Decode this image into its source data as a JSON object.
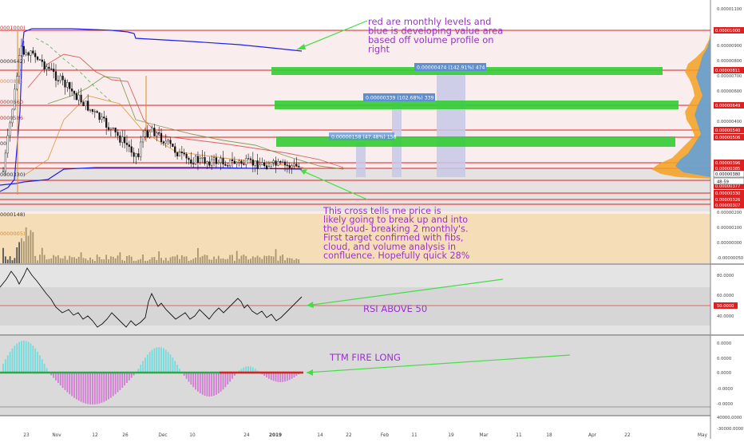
{
  "chart_data": {
    "type": "candlestick",
    "title": "",
    "annotations": {
      "monthly_note": "red are monthly levels and blue is developing value area based off volume profile on right",
      "cross_note": "This cross tells me price is likely going to break up and into the cloud- breaking 2 monthly's. First target confirmed with fibs, cloud, and volume analysis in confluence. Hopefully quick 28%",
      "rsi_note": "RSI ABOVE 50",
      "ttm_note": "TTM FIRE LONG"
    },
    "x_ticks": [
      "23",
      "Nov",
      "12",
      "26",
      "Dec",
      "10",
      "24",
      "2019",
      "14",
      "22",
      "Feb",
      "11",
      "19",
      "Mar",
      "11",
      "18",
      "Apr",
      "22",
      "May"
    ],
    "price_axis_ticks": [
      "0.00001100",
      "0.00001000",
      "0.00000900",
      "0.00000800",
      "0.00000700",
      "0.00000600",
      "0.00000500",
      "0.00000400",
      "0.00000300",
      "0.00000200",
      "0.00000100",
      "0.00000000",
      "-0.00000050"
    ],
    "price_level_tags": [
      "0.00001000",
      "0.00000811",
      "0.00000649",
      "0.00000540",
      "0.00000506",
      "0.00000396",
      "0.00000385",
      "0.00000380",
      "0.00000377",
      "0.00000330",
      "0.00000326",
      "0.00000307"
    ],
    "countdown_tag": "48:59",
    "left_edge_labels": [
      "0001000)",
      "0000642)",
      "0000811",
      "0000660",
      "0000586",
      "00",
      "0000330)",
      "0000148)",
      "0000005)"
    ],
    "targets": [
      {
        "label": "0.00000474 (142.91%) 474",
        "pct": 142.91
      },
      {
        "label": "0.00000339 (102.68%) 339",
        "pct": 102.68
      },
      {
        "label": "0.00000158 (47.48%) 158",
        "pct": 47.48
      }
    ],
    "rsi": {
      "ticks": [
        "80.0000",
        "60.0000",
        "50.0000",
        "40.0000"
      ],
      "current_tag": "50.0000"
    },
    "ttm_squeeze": {
      "ticks": [
        "0.0000",
        "0.0000",
        "0.0000",
        "-0.0000",
        "-0.0000",
        "40000.0000",
        "-30000.0000"
      ]
    },
    "colors": {
      "monthly_level": "#e02020",
      "value_area": "#2020ee",
      "target_box": "#33cc33",
      "volume_profile": "#f5a020",
      "volume_profile_blue": "#5aa0e0",
      "rsi_line": "#111111",
      "hist_cyan": "#66dddd",
      "hist_magenta": "#d070d0",
      "annotation_text": "#9933cc",
      "annotation_arrow": "#44dd44"
    }
  }
}
